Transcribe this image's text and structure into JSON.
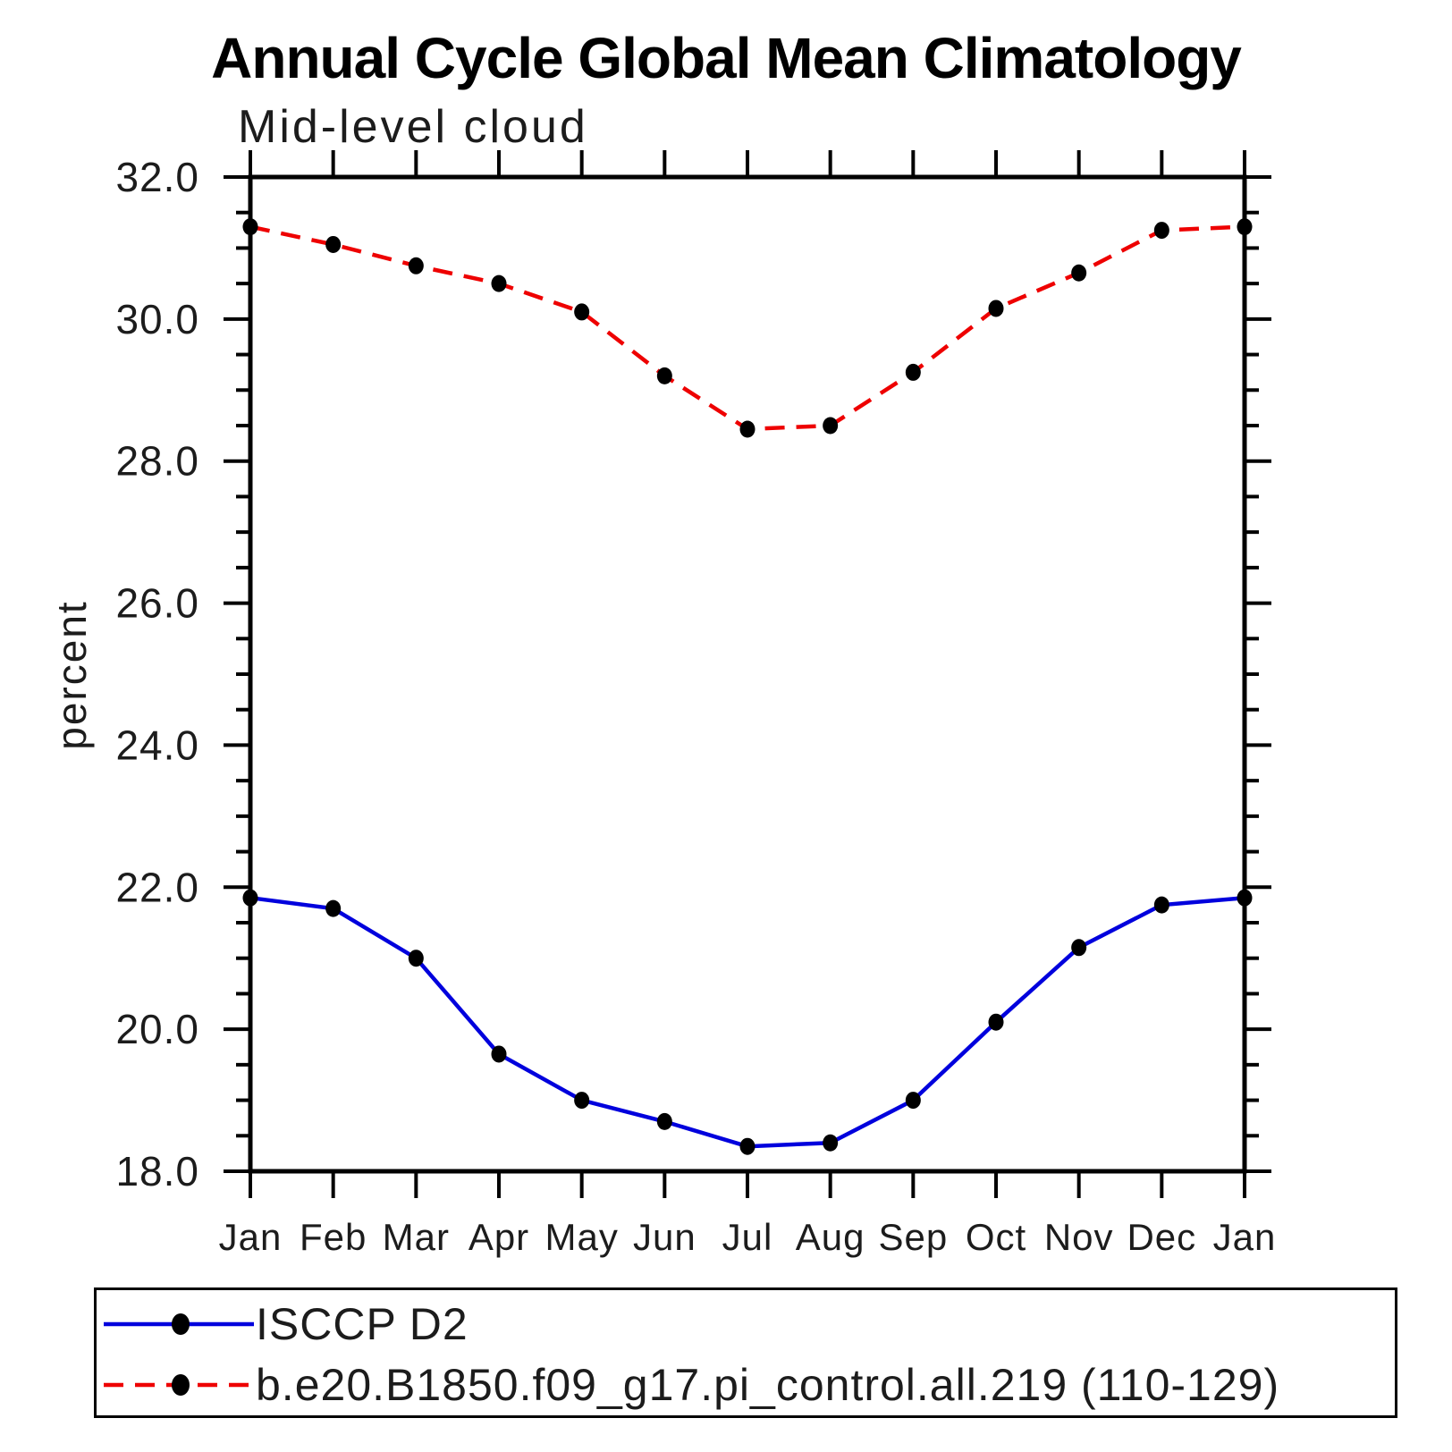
{
  "header": {
    "title": "Annual Cycle Global Mean Climatology",
    "subtitle": "Mid-level cloud"
  },
  "chart_data": {
    "type": "line",
    "title": "Annual Cycle Global Mean Climatology",
    "subtitle": "Mid-level cloud",
    "xlabel": "",
    "ylabel": "percent",
    "categories": [
      "Jan",
      "Feb",
      "Mar",
      "Apr",
      "May",
      "Jun",
      "Jul",
      "Aug",
      "Sep",
      "Oct",
      "Nov",
      "Dec",
      "Jan"
    ],
    "ylim": [
      18.0,
      32.0
    ],
    "y_major_step": 2.0,
    "y_minor_step": 0.5,
    "y_tick_labels": [
      "18.0",
      "20.0",
      "22.0",
      "24.0",
      "26.0",
      "28.0",
      "30.0",
      "32.0"
    ],
    "grid": false,
    "legend_position": "bottom",
    "axis_color": "#000000",
    "marker_color": "#000000",
    "series": [
      {
        "name": "ISCCP D2",
        "color": "#0000dd",
        "line_style": "solid",
        "marker": "filled-circle",
        "values": [
          21.85,
          21.7,
          21.0,
          19.65,
          19.0,
          18.7,
          18.35,
          18.4,
          19.0,
          20.1,
          21.15,
          21.75,
          21.85
        ]
      },
      {
        "name": "b.e20.B1850.f09_g17.pi_control.all.219 (110-129)",
        "color": "#ee0000",
        "line_style": "dashed",
        "marker": "filled-circle",
        "values": [
          31.3,
          31.05,
          30.75,
          30.5,
          30.1,
          29.2,
          28.45,
          28.5,
          29.25,
          30.15,
          30.65,
          31.25,
          31.3
        ]
      }
    ]
  }
}
